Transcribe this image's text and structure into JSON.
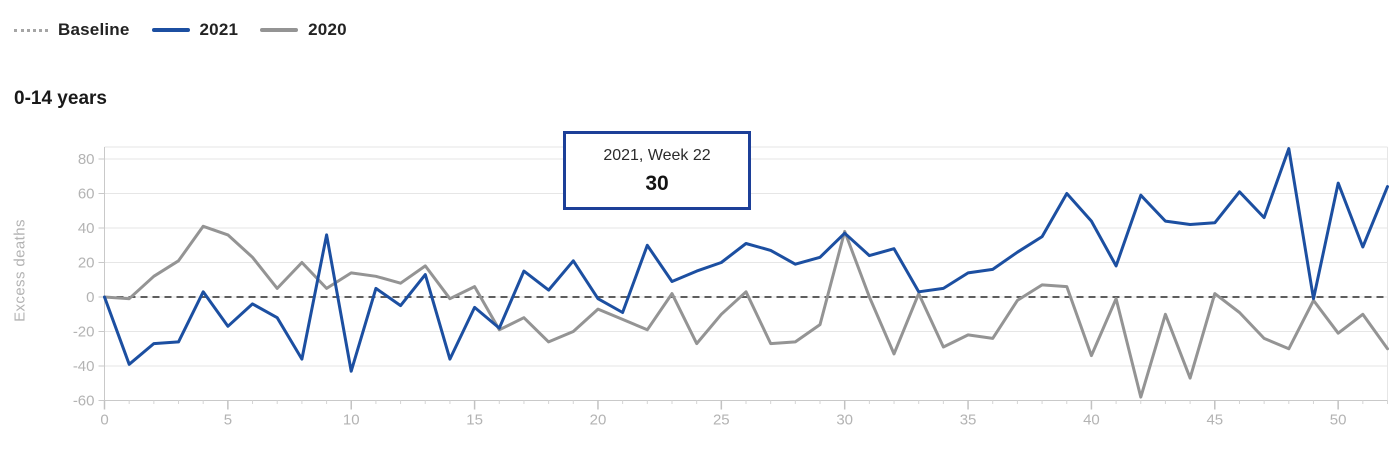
{
  "legend": {
    "items": [
      {
        "label": "Baseline",
        "swatch": "dotted-line-swatch"
      },
      {
        "label": "2021",
        "swatch": "blue-line-swatch"
      },
      {
        "label": "2020",
        "swatch": "gray-line-swatch"
      }
    ]
  },
  "title": "0-14 years",
  "tooltip": {
    "label": "2021, Week 22",
    "value": "30"
  },
  "colors": {
    "series_2021": "#1c4fa1",
    "series_2020": "#949494",
    "baseline_dash": "#5e5e5e",
    "legend_dotted": "#a5a5a5",
    "tooltip_border": "#1c3f98",
    "grid": "#e6e6e6",
    "axis": "#c9c9c9",
    "tick": "#c2c2c2",
    "minor_tick": "#d5d5d5",
    "tick_label": "#b3b3b3"
  },
  "chart_data": {
    "type": "line",
    "title": "0-14 years",
    "xlabel": "",
    "ylabel": "Excess deaths",
    "xlim": [
      0,
      52
    ],
    "ylim": [
      -65,
      87
    ],
    "x_ticks": [
      0,
      5,
      10,
      15,
      20,
      25,
      30,
      35,
      40,
      45,
      50
    ],
    "y_ticks": [
      -60,
      -40,
      -20,
      0,
      20,
      40,
      60,
      80
    ],
    "grid": "horizontal",
    "legend_position": "top-left",
    "baseline": 0,
    "x": [
      0,
      1,
      2,
      3,
      4,
      5,
      6,
      7,
      8,
      9,
      10,
      11,
      12,
      13,
      14,
      15,
      16,
      17,
      18,
      19,
      20,
      21,
      22,
      23,
      24,
      25,
      26,
      27,
      28,
      29,
      30,
      31,
      32,
      33,
      34,
      35,
      36,
      37,
      38,
      39,
      40,
      41,
      42,
      43,
      44,
      45,
      46,
      47,
      48,
      49,
      50,
      51,
      52
    ],
    "series": [
      {
        "name": "2021",
        "values": [
          0,
          -39,
          -27,
          -26,
          3,
          -17,
          -4,
          -12,
          -36,
          36,
          -43,
          5,
          -5,
          13,
          -36,
          -6,
          -18,
          15,
          4,
          21,
          -1,
          -9,
          30,
          9,
          15,
          20,
          31,
          27,
          19,
          23,
          37,
          24,
          28,
          3,
          5,
          14,
          16,
          26,
          35,
          60,
          44,
          18,
          59,
          44,
          42,
          43,
          61,
          46,
          86,
          -1,
          66,
          29,
          64
        ]
      },
      {
        "name": "2020",
        "values": [
          0,
          -1,
          12,
          21,
          41,
          36,
          23,
          5,
          20,
          5,
          14,
          12,
          8,
          18,
          -1,
          6,
          -19,
          -12,
          -26,
          -20,
          -7,
          -13,
          -19,
          2,
          -27,
          -10,
          3,
          -27,
          -26,
          -16,
          38,
          0,
          -33,
          2,
          -29,
          -22,
          -24,
          -2,
          7,
          6,
          -34,
          -1,
          -58,
          -10,
          -47,
          2,
          -9,
          -24,
          -30,
          -2,
          -21,
          -10,
          -30
        ]
      }
    ],
    "highlighted_point": {
      "series": "2021",
      "week": 22,
      "value": 30
    }
  }
}
